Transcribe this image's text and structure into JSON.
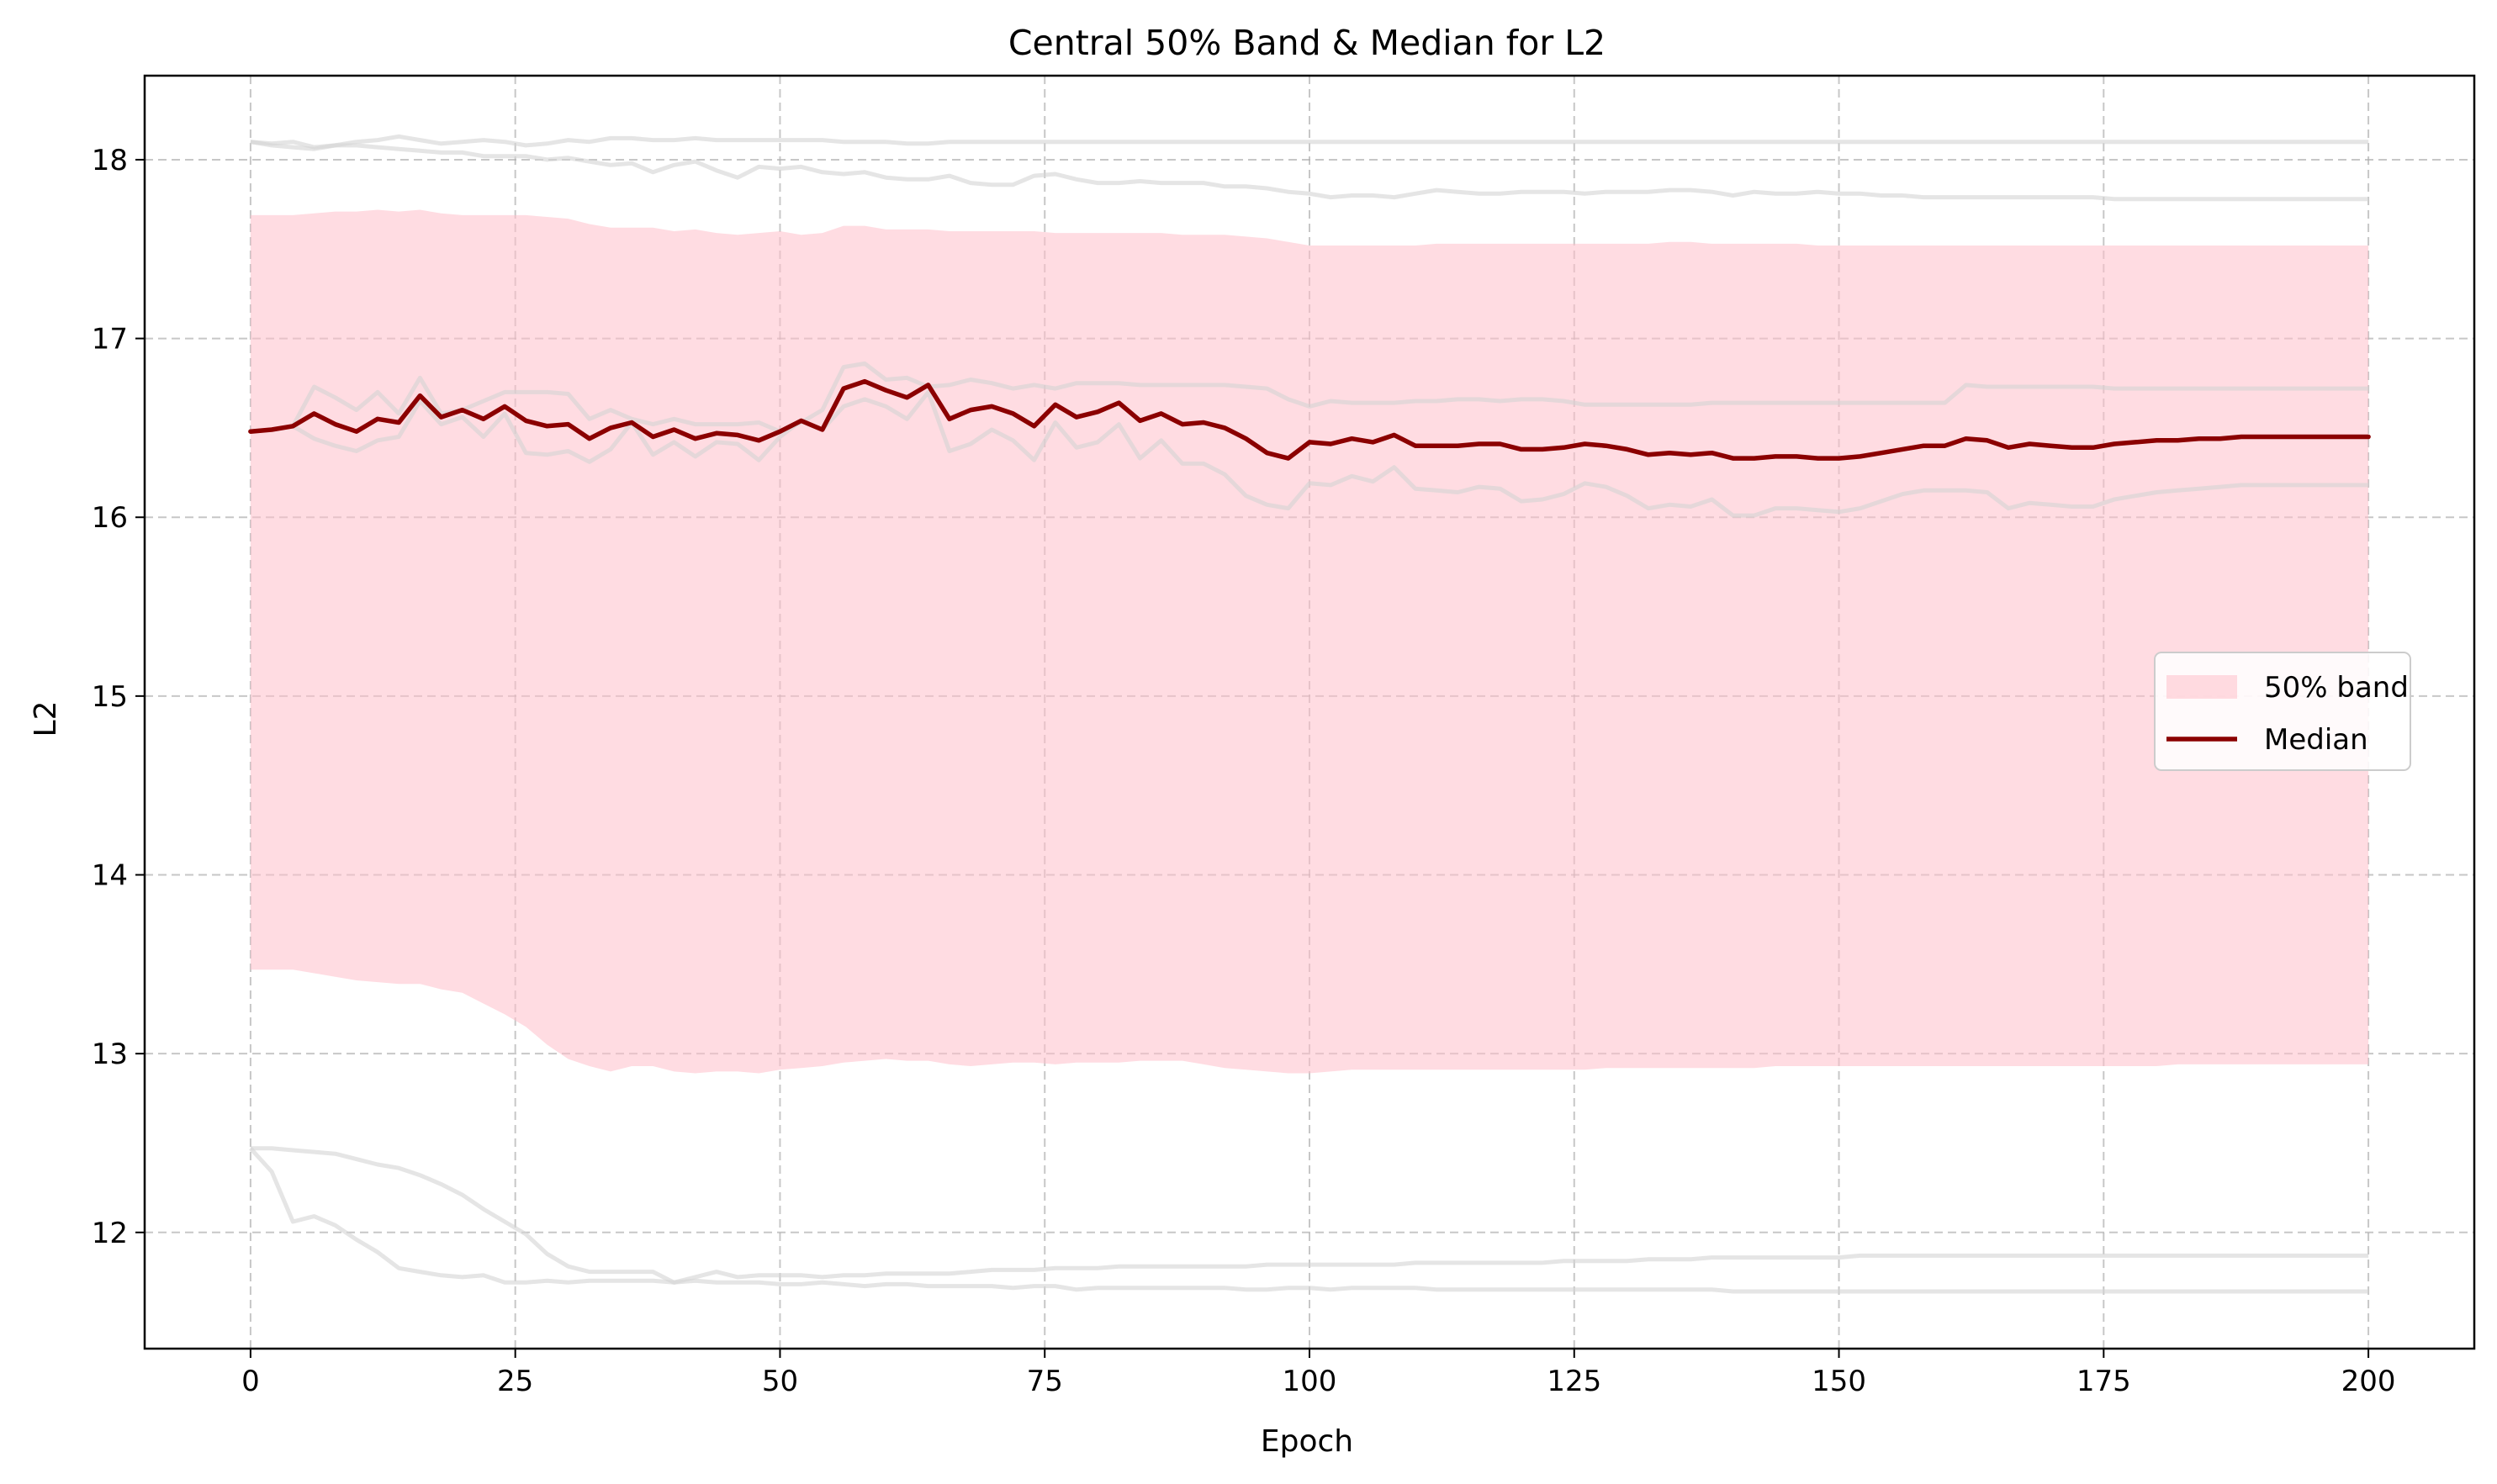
{
  "chart_data": {
    "type": "line",
    "title": "Central 50% Band & Median for L2",
    "xlabel": "Epoch",
    "ylabel": "L2",
    "xlim": [
      -10,
      210
    ],
    "ylim": [
      11.35,
      18.47
    ],
    "grid": true,
    "legend_position": "center-right",
    "xticks": [
      0,
      25,
      50,
      75,
      100,
      125,
      150,
      175,
      200
    ],
    "yticks": [
      12,
      13,
      14,
      15,
      16,
      17,
      18
    ],
    "x": [
      0,
      2,
      4,
      6,
      8,
      10,
      12,
      14,
      16,
      18,
      20,
      22,
      24,
      26,
      28,
      30,
      32,
      34,
      36,
      38,
      40,
      42,
      44,
      46,
      48,
      50,
      52,
      54,
      56,
      58,
      60,
      62,
      64,
      66,
      68,
      70,
      72,
      74,
      76,
      78,
      80,
      82,
      84,
      86,
      88,
      90,
      92,
      94,
      96,
      98,
      100,
      102,
      104,
      106,
      108,
      110,
      112,
      114,
      116,
      118,
      120,
      122,
      124,
      126,
      128,
      130,
      132,
      134,
      136,
      138,
      140,
      142,
      144,
      146,
      148,
      150,
      152,
      154,
      156,
      158,
      160,
      162,
      164,
      166,
      168,
      170,
      172,
      174,
      176,
      178,
      180,
      182,
      184,
      186,
      188,
      190,
      192,
      194,
      196,
      198,
      200
    ],
    "series": [
      {
        "name": "50% band",
        "kind": "band",
        "color": "#ffc0cb",
        "lower": [
          13.47,
          13.47,
          13.47,
          13.45,
          13.43,
          13.41,
          13.4,
          13.39,
          13.39,
          13.36,
          13.34,
          13.28,
          13.22,
          13.15,
          13.05,
          12.97,
          12.93,
          12.9,
          12.93,
          12.93,
          12.9,
          12.89,
          12.9,
          12.9,
          12.89,
          12.91,
          12.92,
          12.93,
          12.95,
          12.96,
          12.97,
          12.96,
          12.96,
          12.94,
          12.93,
          12.94,
          12.95,
          12.95,
          12.94,
          12.95,
          12.95,
          12.95,
          12.96,
          12.96,
          12.96,
          12.94,
          12.92,
          12.91,
          12.9,
          12.89,
          12.89,
          12.9,
          12.91,
          12.91,
          12.91,
          12.91,
          12.91,
          12.91,
          12.91,
          12.91,
          12.91,
          12.91,
          12.91,
          12.91,
          12.92,
          12.92,
          12.92,
          12.92,
          12.92,
          12.92,
          12.92,
          12.92,
          12.93,
          12.93,
          12.93,
          12.93,
          12.93,
          12.93,
          12.93,
          12.93,
          12.93,
          12.93,
          12.93,
          12.93,
          12.93,
          12.93,
          12.93,
          12.93,
          12.93,
          12.93,
          12.93,
          12.94,
          12.94,
          12.94,
          12.94,
          12.94,
          12.94,
          12.94,
          12.94,
          12.94,
          12.94
        ],
        "upper": [
          17.69,
          17.69,
          17.69,
          17.7,
          17.71,
          17.71,
          17.72,
          17.71,
          17.72,
          17.7,
          17.69,
          17.69,
          17.69,
          17.69,
          17.68,
          17.67,
          17.64,
          17.62,
          17.62,
          17.62,
          17.6,
          17.61,
          17.59,
          17.58,
          17.59,
          17.6,
          17.58,
          17.59,
          17.63,
          17.63,
          17.61,
          17.61,
          17.61,
          17.6,
          17.6,
          17.6,
          17.6,
          17.6,
          17.59,
          17.59,
          17.59,
          17.59,
          17.59,
          17.59,
          17.58,
          17.58,
          17.58,
          17.57,
          17.56,
          17.54,
          17.52,
          17.52,
          17.52,
          17.52,
          17.52,
          17.52,
          17.53,
          17.53,
          17.53,
          17.53,
          17.53,
          17.53,
          17.53,
          17.53,
          17.53,
          17.53,
          17.53,
          17.54,
          17.54,
          17.53,
          17.53,
          17.53,
          17.53,
          17.53,
          17.52,
          17.52,
          17.52,
          17.52,
          17.52,
          17.52,
          17.52,
          17.52,
          17.52,
          17.52,
          17.52,
          17.52,
          17.52,
          17.52,
          17.52,
          17.52,
          17.52,
          17.52,
          17.52,
          17.52,
          17.52,
          17.52,
          17.52,
          17.52,
          17.52,
          17.52,
          17.52
        ]
      },
      {
        "name": "Median",
        "kind": "line",
        "color": "#8b0000",
        "values": [
          16.48,
          16.49,
          16.51,
          16.58,
          16.52,
          16.48,
          16.55,
          16.53,
          16.68,
          16.56,
          16.6,
          16.55,
          16.62,
          16.54,
          16.51,
          16.52,
          16.44,
          16.5,
          16.53,
          16.45,
          16.49,
          16.44,
          16.47,
          16.46,
          16.43,
          16.48,
          16.54,
          16.49,
          16.72,
          16.76,
          16.71,
          16.67,
          16.74,
          16.55,
          16.6,
          16.62,
          16.58,
          16.51,
          16.63,
          16.56,
          16.59,
          16.64,
          16.54,
          16.58,
          16.52,
          16.53,
          16.5,
          16.44,
          16.36,
          16.33,
          16.42,
          16.41,
          16.44,
          16.42,
          16.46,
          16.4,
          16.4,
          16.4,
          16.41,
          16.41,
          16.38,
          16.38,
          16.39,
          16.41,
          16.4,
          16.38,
          16.35,
          16.36,
          16.35,
          16.36,
          16.33,
          16.33,
          16.34,
          16.34,
          16.33,
          16.33,
          16.34,
          16.36,
          16.38,
          16.4,
          16.4,
          16.44,
          16.43,
          16.39,
          16.41,
          16.4,
          16.39,
          16.39,
          16.41,
          16.42,
          16.43,
          16.43,
          16.44,
          16.44,
          16.45,
          16.45,
          16.45,
          16.45,
          16.45,
          16.45,
          16.45
        ]
      },
      {
        "kind": "run",
        "color": "#d3d3d3",
        "values": [
          18.1,
          18.09,
          18.1,
          18.07,
          18.08,
          18.1,
          18.11,
          18.13,
          18.11,
          18.09,
          18.1,
          18.11,
          18.1,
          18.08,
          18.09,
          18.11,
          18.1,
          18.12,
          18.12,
          18.11,
          18.11,
          18.12,
          18.11,
          18.11,
          18.11,
          18.11,
          18.11,
          18.11,
          18.1,
          18.1,
          18.1,
          18.09,
          18.09,
          18.1,
          18.1,
          18.1,
          18.1,
          18.1,
          18.1,
          18.1,
          18.1,
          18.1,
          18.1,
          18.1,
          18.1,
          18.1,
          18.1,
          18.1,
          18.1,
          18.1,
          18.1,
          18.1,
          18.1,
          18.1,
          18.1,
          18.1,
          18.1,
          18.1,
          18.1,
          18.1,
          18.1,
          18.1,
          18.1,
          18.1,
          18.1,
          18.1,
          18.1,
          18.1,
          18.1,
          18.1,
          18.1,
          18.1,
          18.1,
          18.1,
          18.1,
          18.1,
          18.1,
          18.1,
          18.1,
          18.1,
          18.1,
          18.1,
          18.1,
          18.1,
          18.1,
          18.1,
          18.1,
          18.1,
          18.1,
          18.1,
          18.1,
          18.1,
          18.1,
          18.1,
          18.1,
          18.1,
          18.1,
          18.1,
          18.1,
          18.1,
          18.1
        ]
      },
      {
        "kind": "run",
        "color": "#d3d3d3",
        "values": [
          18.1,
          18.08,
          18.07,
          18.06,
          18.08,
          18.08,
          18.07,
          18.06,
          18.05,
          18.04,
          18.04,
          18.02,
          18.02,
          18.02,
          18.0,
          18.01,
          17.99,
          17.97,
          17.98,
          17.93,
          17.97,
          17.99,
          17.94,
          17.9,
          17.96,
          17.95,
          17.96,
          17.93,
          17.92,
          17.93,
          17.9,
          17.89,
          17.89,
          17.91,
          17.87,
          17.86,
          17.86,
          17.91,
          17.92,
          17.89,
          17.87,
          17.87,
          17.88,
          17.87,
          17.87,
          17.87,
          17.85,
          17.85,
          17.84,
          17.82,
          17.81,
          17.79,
          17.8,
          17.8,
          17.79,
          17.81,
          17.83,
          17.82,
          17.81,
          17.81,
          17.82,
          17.82,
          17.82,
          17.81,
          17.82,
          17.82,
          17.82,
          17.83,
          17.83,
          17.82,
          17.8,
          17.82,
          17.81,
          17.81,
          17.82,
          17.81,
          17.81,
          17.8,
          17.8,
          17.79,
          17.79,
          17.79,
          17.79,
          17.79,
          17.79,
          17.79,
          17.79,
          17.79,
          17.78,
          17.78,
          17.78,
          17.78,
          17.78,
          17.78,
          17.78,
          17.78,
          17.78,
          17.78,
          17.78,
          17.78,
          17.78
        ]
      },
      {
        "kind": "run",
        "color": "#d3d3d3",
        "values": [
          16.48,
          16.49,
          16.51,
          16.73,
          16.67,
          16.6,
          16.7,
          16.58,
          16.78,
          16.58,
          16.6,
          16.65,
          16.7,
          16.7,
          16.7,
          16.69,
          16.55,
          16.6,
          16.55,
          16.52,
          16.55,
          16.52,
          16.52,
          16.52,
          16.53,
          16.48,
          16.53,
          16.6,
          16.84,
          16.86,
          16.77,
          16.78,
          16.73,
          16.74,
          16.77,
          16.75,
          16.72,
          16.74,
          16.72,
          16.75,
          16.75,
          16.75,
          16.74,
          16.74,
          16.74,
          16.74,
          16.74,
          16.73,
          16.72,
          16.66,
          16.62,
          16.65,
          16.64,
          16.64,
          16.64,
          16.65,
          16.65,
          16.66,
          16.66,
          16.65,
          16.66,
          16.66,
          16.65,
          16.63,
          16.63,
          16.63,
          16.63,
          16.63,
          16.63,
          16.64,
          16.64,
          16.64,
          16.64,
          16.64,
          16.64,
          16.64,
          16.64,
          16.64,
          16.64,
          16.64,
          16.64,
          16.74,
          16.73,
          16.73,
          16.73,
          16.73,
          16.73,
          16.73,
          16.72,
          16.72,
          16.72,
          16.72,
          16.72,
          16.72,
          16.72,
          16.72,
          16.72,
          16.72,
          16.72,
          16.72,
          16.72
        ]
      },
      {
        "kind": "run",
        "color": "#d3d3d3",
        "values": [
          16.48,
          16.49,
          16.51,
          16.44,
          16.4,
          16.37,
          16.43,
          16.45,
          16.65,
          16.52,
          16.56,
          16.45,
          16.58,
          16.36,
          16.35,
          16.37,
          16.31,
          16.38,
          16.53,
          16.35,
          16.42,
          16.34,
          16.42,
          16.41,
          16.32,
          16.45,
          16.54,
          16.49,
          16.62,
          16.66,
          16.62,
          16.55,
          16.7,
          16.37,
          16.41,
          16.49,
          16.43,
          16.32,
          16.53,
          16.39,
          16.42,
          16.52,
          16.33,
          16.43,
          16.3,
          16.3,
          16.24,
          16.12,
          16.07,
          16.05,
          16.19,
          16.18,
          16.23,
          16.2,
          16.28,
          16.16,
          16.15,
          16.14,
          16.17,
          16.16,
          16.09,
          16.1,
          16.13,
          16.19,
          16.17,
          16.12,
          16.05,
          16.07,
          16.06,
          16.1,
          16.01,
          16.01,
          16.05,
          16.05,
          16.04,
          16.03,
          16.05,
          16.09,
          16.13,
          16.15,
          16.15,
          16.15,
          16.14,
          16.05,
          16.08,
          16.07,
          16.06,
          16.06,
          16.1,
          16.12,
          16.14,
          16.15,
          16.16,
          16.17,
          16.18,
          16.18,
          16.18,
          16.18,
          16.18,
          16.18,
          16.18
        ]
      },
      {
        "kind": "run",
        "color": "#d3d3d3",
        "values": [
          12.47,
          12.34,
          12.06,
          12.09,
          12.04,
          11.96,
          11.89,
          11.8,
          11.78,
          11.76,
          11.75,
          11.76,
          11.72,
          11.72,
          11.73,
          11.72,
          11.73,
          11.73,
          11.73,
          11.73,
          11.72,
          11.73,
          11.72,
          11.72,
          11.72,
          11.71,
          11.71,
          11.72,
          11.71,
          11.7,
          11.71,
          11.71,
          11.7,
          11.7,
          11.7,
          11.7,
          11.69,
          11.7,
          11.7,
          11.68,
          11.69,
          11.69,
          11.69,
          11.69,
          11.69,
          11.69,
          11.69,
          11.68,
          11.68,
          11.69,
          11.69,
          11.68,
          11.69,
          11.69,
          11.69,
          11.69,
          11.68,
          11.68,
          11.68,
          11.68,
          11.68,
          11.68,
          11.68,
          11.68,
          11.68,
          11.68,
          11.68,
          11.68,
          11.68,
          11.68,
          11.67,
          11.67,
          11.67,
          11.67,
          11.67,
          11.67,
          11.67,
          11.67,
          11.67,
          11.67,
          11.67,
          11.67,
          11.67,
          11.67,
          11.67,
          11.67,
          11.67,
          11.67,
          11.67,
          11.67,
          11.67,
          11.67,
          11.67,
          11.67,
          11.67,
          11.67,
          11.67,
          11.67,
          11.67,
          11.67,
          11.67
        ]
      },
      {
        "kind": "run",
        "color": "#d3d3d3",
        "values": [
          12.47,
          12.47,
          12.46,
          12.45,
          12.44,
          12.41,
          12.38,
          12.36,
          12.32,
          12.27,
          12.21,
          12.13,
          12.06,
          11.99,
          11.88,
          11.81,
          11.78,
          11.78,
          11.78,
          11.78,
          11.72,
          11.75,
          11.78,
          11.75,
          11.76,
          11.76,
          11.76,
          11.75,
          11.76,
          11.76,
          11.77,
          11.77,
          11.77,
          11.77,
          11.78,
          11.79,
          11.79,
          11.79,
          11.8,
          11.8,
          11.8,
          11.81,
          11.81,
          11.81,
          11.81,
          11.81,
          11.81,
          11.81,
          11.82,
          11.82,
          11.82,
          11.82,
          11.82,
          11.82,
          11.82,
          11.83,
          11.83,
          11.83,
          11.83,
          11.83,
          11.83,
          11.83,
          11.84,
          11.84,
          11.84,
          11.84,
          11.85,
          11.85,
          11.85,
          11.86,
          11.86,
          11.86,
          11.86,
          11.86,
          11.86,
          11.86,
          11.87,
          11.87,
          11.87,
          11.87,
          11.87,
          11.87,
          11.87,
          11.87,
          11.87,
          11.87,
          11.87,
          11.87,
          11.87,
          11.87,
          11.87,
          11.87,
          11.87,
          11.87,
          11.87,
          11.87,
          11.87,
          11.87,
          11.87,
          11.87,
          11.87
        ]
      }
    ]
  }
}
